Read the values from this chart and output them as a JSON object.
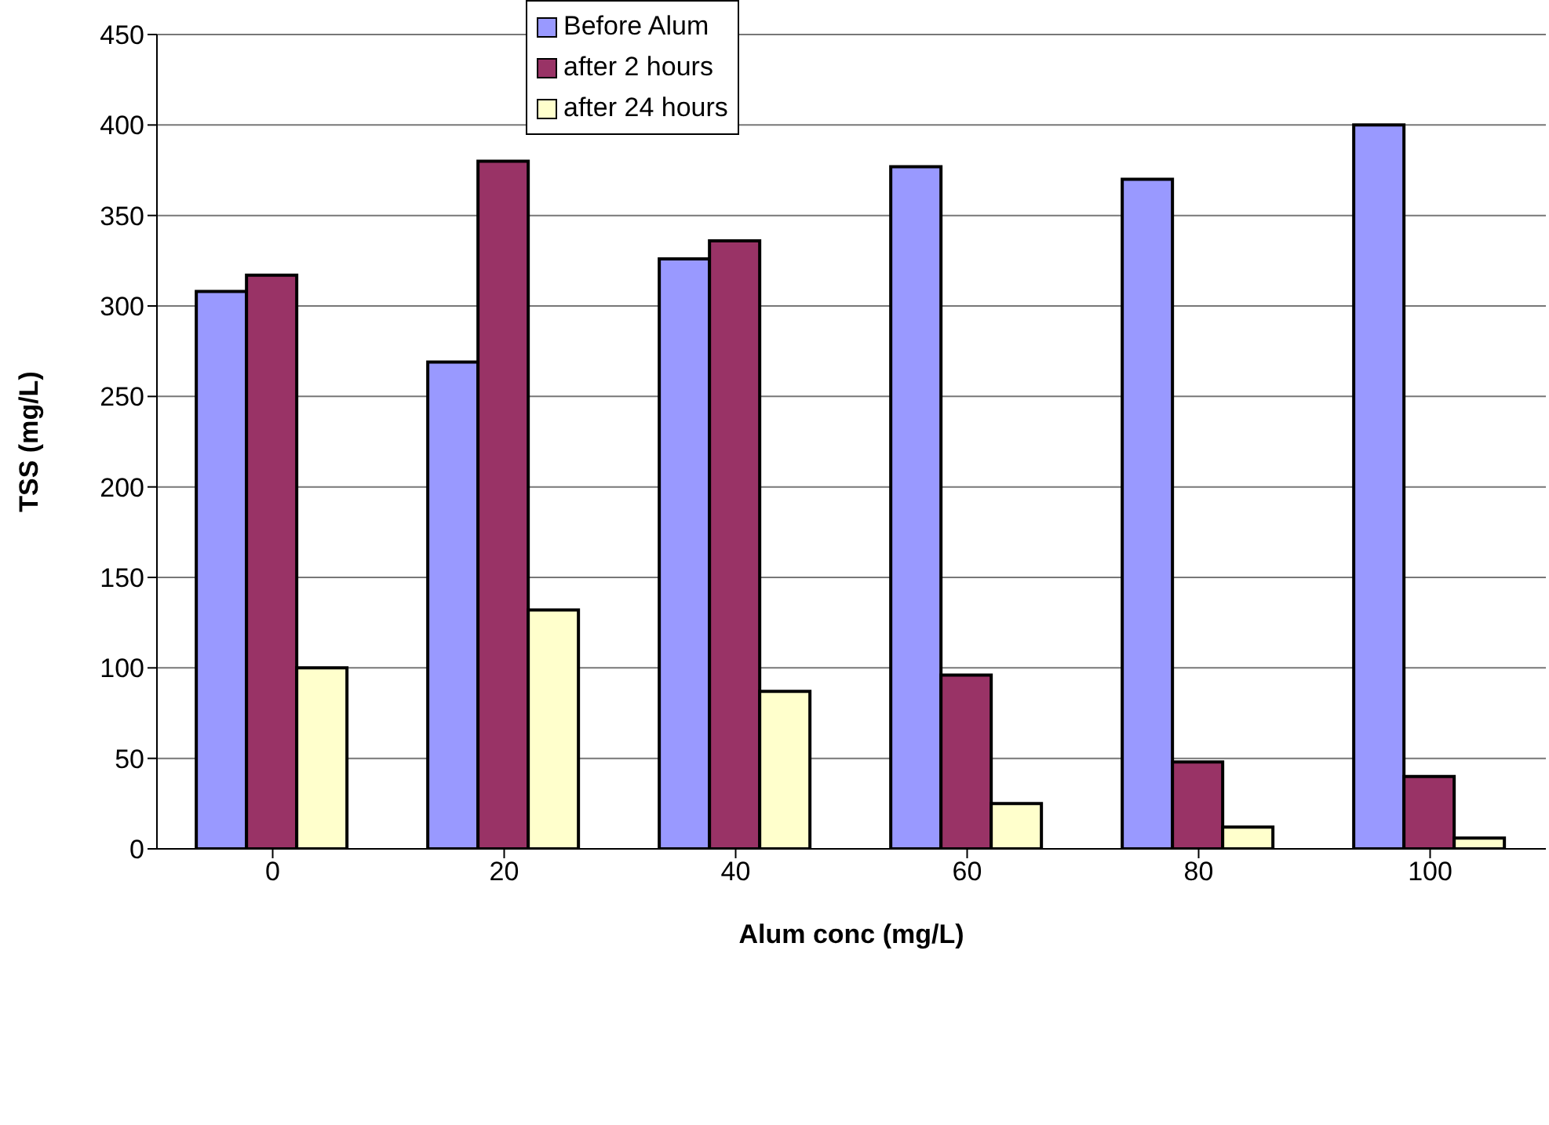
{
  "chart_data": {
    "type": "bar",
    "xlabel": "Alum conc (mg/L)",
    "ylabel": "TSS (mg/L)",
    "categories": [
      "0",
      "20",
      "40",
      "60",
      "80",
      "100"
    ],
    "series": [
      {
        "name": "Before Alum",
        "color": "#9999ff",
        "values": [
          308,
          269,
          326,
          377,
          370,
          400
        ]
      },
      {
        "name": "after 2 hours",
        "color": "#993366",
        "values": [
          317,
          380,
          336,
          96,
          48,
          40
        ]
      },
      {
        "name": "after 24 hours",
        "color": "#ffffcc",
        "values": [
          100,
          132,
          87,
          25,
          12,
          6
        ]
      }
    ],
    "ylim": [
      0,
      450
    ],
    "yticks": [
      0,
      50,
      100,
      150,
      200,
      250,
      300,
      350,
      400,
      450
    ],
    "grid": "y",
    "legend": "top"
  }
}
